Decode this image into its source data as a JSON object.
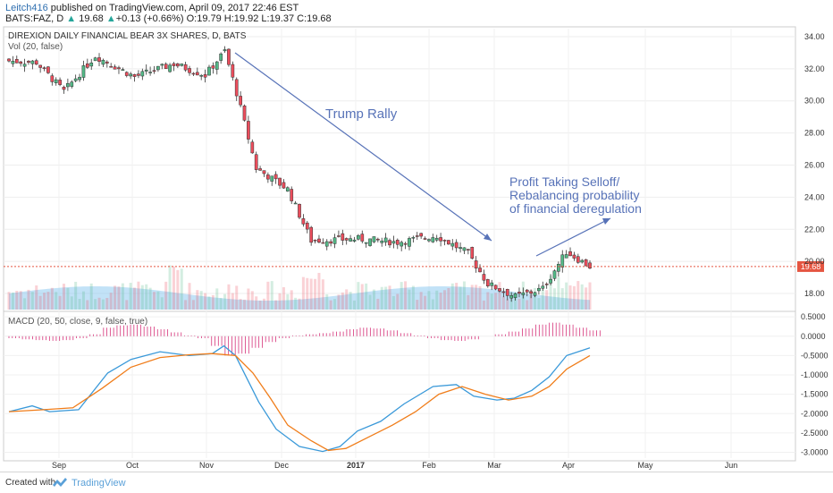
{
  "header": {
    "author": "Leitch416",
    "published_text": " published on TradingView.com, April 09, 2017 22:46 EST",
    "symbol_line": "BATS:FAZ, D",
    "last": "19.68",
    "change": "+0.13 (+0.66%)",
    "ohlc": "O:19.79 H:19.92 L:19.37 C:19.68"
  },
  "colors": {
    "up": "#53b987",
    "down": "#eb4d5c",
    "macd_line": "#3a99d9",
    "signal_line": "#f07d1a",
    "histogram": "#d6337a",
    "annotation": "#5873b8",
    "price_line": "#e55541",
    "volume_area": "#8fcaf0"
  },
  "footer": {
    "created": "Created with",
    "brand": "TradingView"
  },
  "chart_data": [
    {
      "type": "candlestick",
      "title": "DIREXION DAILY FINANCIAL BEAR 3X SHARES, D, BATS",
      "ylim": [
        17.0,
        34.5
      ],
      "y_ticks": [
        "34.00",
        "32.00",
        "30.00",
        "28.00",
        "26.00",
        "24.00",
        "22.00",
        "20.00",
        "18.00"
      ],
      "x_ticks": [
        "Sep",
        "Oct",
        "Nov",
        "Dec",
        "2017",
        "Feb",
        "Mar",
        "Apr",
        "May",
        "Jun"
      ],
      "last_price_label": "19.68",
      "last_price": 19.68,
      "segments": [
        {
          "from": 32.5,
          "to": 32.4,
          "n": 8
        },
        {
          "from": 32.4,
          "to": 30.6,
          "n": 7
        },
        {
          "from": 30.6,
          "to": 32.8,
          "n": 8
        },
        {
          "from": 32.8,
          "to": 31.5,
          "n": 10
        },
        {
          "from": 31.5,
          "to": 32.3,
          "n": 10
        },
        {
          "from": 32.3,
          "to": 31.6,
          "n": 8
        },
        {
          "from": 31.6,
          "to": 33.1,
          "n": 5
        },
        {
          "from": 33.1,
          "to": 30.5,
          "n": 3
        },
        {
          "from": 30.5,
          "to": 25.8,
          "n": 5
        },
        {
          "from": 25.8,
          "to": 24.5,
          "n": 8
        },
        {
          "from": 24.5,
          "to": 21.3,
          "n": 6
        },
        {
          "from": 21.3,
          "to": 21.4,
          "n": 12
        },
        {
          "from": 21.4,
          "to": 21.2,
          "n": 10
        },
        {
          "from": 21.2,
          "to": 21.6,
          "n": 10
        },
        {
          "from": 21.6,
          "to": 20.5,
          "n": 8
        },
        {
          "from": 20.5,
          "to": 18.6,
          "n": 5
        },
        {
          "from": 18.6,
          "to": 17.8,
          "n": 7
        },
        {
          "from": 17.8,
          "to": 18.3,
          "n": 7
        },
        {
          "from": 18.3,
          "to": 20.6,
          "n": 6
        },
        {
          "from": 20.6,
          "to": 19.68,
          "n": 6
        }
      ],
      "annotations": [
        {
          "text": "Trump Rally"
        },
        {
          "text": "Profit Taking Selloff/"
        },
        {
          "text": "Rebalancing probability"
        },
        {
          "text": "of financial deregulation"
        }
      ]
    },
    {
      "type": "volume",
      "title": "Vol (20, false)"
    },
    {
      "type": "line",
      "title": "MACD (20, 50, close, 9, false, true)",
      "ylim": [
        -3.15,
        0.55
      ],
      "y_ticks": [
        "0.5000",
        "0.0000",
        "-0.5000",
        "-1.0000",
        "-1.5000",
        "-2.0000",
        "-2.5000",
        "-3.0000"
      ],
      "series": [
        {
          "name": "MACD",
          "points": [
            [
              0,
              -1.95
            ],
            [
              0.04,
              -1.8
            ],
            [
              0.07,
              -1.95
            ],
            [
              0.12,
              -1.9
            ],
            [
              0.17,
              -0.95
            ],
            [
              0.21,
              -0.6
            ],
            [
              0.26,
              -0.4
            ],
            [
              0.31,
              -0.5
            ],
            [
              0.35,
              -0.45
            ],
            [
              0.37,
              -0.25
            ],
            [
              0.39,
              -0.5
            ],
            [
              0.41,
              -1.1
            ],
            [
              0.43,
              -1.7
            ],
            [
              0.46,
              -2.4
            ],
            [
              0.5,
              -2.85
            ],
            [
              0.54,
              -2.98
            ],
            [
              0.57,
              -2.85
            ],
            [
              0.6,
              -2.45
            ],
            [
              0.64,
              -2.2
            ],
            [
              0.68,
              -1.75
            ],
            [
              0.73,
              -1.3
            ],
            [
              0.77,
              -1.25
            ],
            [
              0.8,
              -1.55
            ],
            [
              0.84,
              -1.65
            ],
            [
              0.87,
              -1.6
            ],
            [
              0.9,
              -1.4
            ],
            [
              0.93,
              -1.05
            ],
            [
              0.96,
              -0.5
            ],
            [
              1.0,
              -0.3
            ]
          ]
        },
        {
          "name": "Signal",
          "points": [
            [
              0,
              -1.95
            ],
            [
              0.06,
              -1.9
            ],
            [
              0.11,
              -1.85
            ],
            [
              0.16,
              -1.35
            ],
            [
              0.21,
              -0.8
            ],
            [
              0.26,
              -0.55
            ],
            [
              0.31,
              -0.48
            ],
            [
              0.35,
              -0.45
            ],
            [
              0.39,
              -0.5
            ],
            [
              0.42,
              -0.95
            ],
            [
              0.45,
              -1.6
            ],
            [
              0.48,
              -2.3
            ],
            [
              0.52,
              -2.7
            ],
            [
              0.55,
              -2.95
            ],
            [
              0.58,
              -2.9
            ],
            [
              0.62,
              -2.6
            ],
            [
              0.66,
              -2.3
            ],
            [
              0.7,
              -1.95
            ],
            [
              0.74,
              -1.5
            ],
            [
              0.78,
              -1.3
            ],
            [
              0.82,
              -1.5
            ],
            [
              0.86,
              -1.65
            ],
            [
              0.9,
              -1.55
            ],
            [
              0.93,
              -1.3
            ],
            [
              0.96,
              -0.85
            ],
            [
              1.0,
              -0.5
            ]
          ]
        }
      ],
      "histogram": [
        -0.05,
        -0.08,
        -0.1,
        -0.12,
        -0.1,
        -0.05,
        0.05,
        0.22,
        0.28,
        0.3,
        0.25,
        0.18,
        0.1,
        0.02,
        -0.05,
        -0.25,
        -0.5,
        -0.45,
        -0.3,
        -0.15,
        -0.05,
        0.02,
        0.05,
        0.08,
        0.12,
        0.18,
        0.22,
        0.2,
        0.15,
        0.08,
        0.02,
        -0.05,
        -0.1,
        -0.12,
        -0.08,
        0.0,
        0.05,
        0.12,
        0.2,
        0.3,
        0.35,
        0.3,
        0.22,
        0.15
      ]
    }
  ]
}
